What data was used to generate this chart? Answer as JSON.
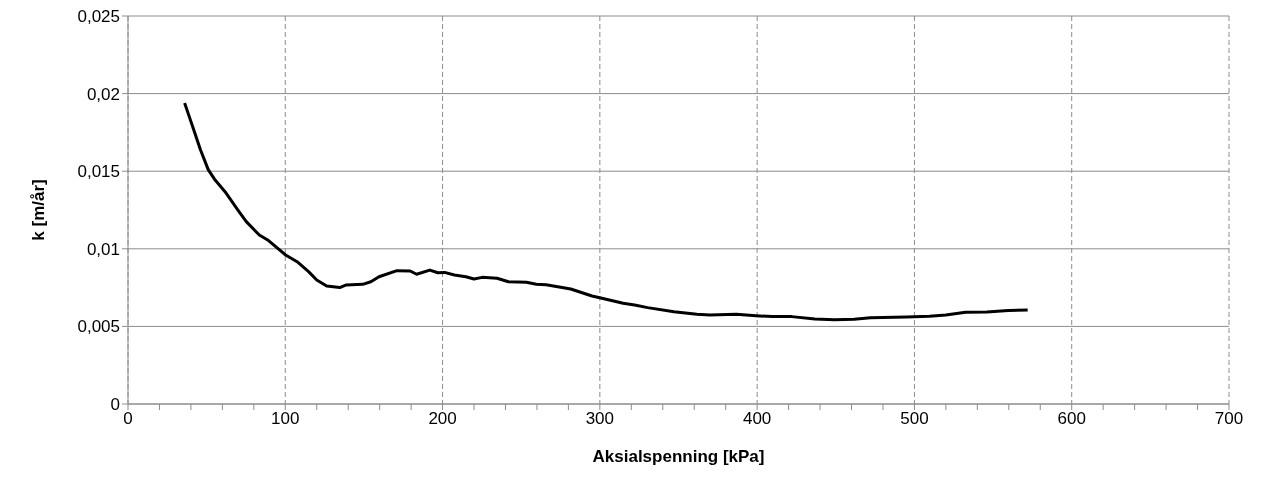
{
  "chart_data": {
    "type": "line",
    "xlabel": "Aksialspenning [kPa]",
    "ylabel": "k [m/år]",
    "x": [
      36,
      39,
      42,
      46,
      51,
      55.4,
      61.7,
      70,
      75.2,
      83.5,
      88.8,
      100.2,
      107.5,
      114.8,
      120,
      126.3,
      134.6,
      138.8,
      149.2,
      154.4,
      159.6,
      171,
      179.4,
      183.5,
      191.9,
      197,
      201.3,
      207.5,
      214.8,
      220,
      225.2,
      234.6,
      241.9,
      253.3,
      259.6,
      265.8,
      281.5,
      295,
      301.3,
      314.8,
      322.1,
      330.4,
      347.1,
      361.7,
      370,
      386.7,
      399.2,
      409.6,
      422,
      436.7,
      449.2,
      461.7,
      472,
      495,
      509.6,
      520,
      532.5,
      546,
      559.7,
      572
    ],
    "series": [
      {
        "color": "#000000",
        "values": [
          0.0194,
          0.0185,
          0.0176,
          0.0164,
          0.0151,
          0.01443,
          0.01368,
          0.01248,
          0.01175,
          0.01089,
          0.01057,
          0.0096,
          0.00917,
          0.00853,
          0.00799,
          0.0076,
          0.0075,
          0.00767,
          0.00771,
          0.00788,
          0.0082,
          0.00859,
          0.00857,
          0.00836,
          0.00863,
          0.00846,
          0.00848,
          0.00831,
          0.0082,
          0.00805,
          0.00816,
          0.0081,
          0.00788,
          0.00784,
          0.00771,
          0.00769,
          0.00741,
          0.00696,
          0.00681,
          0.00649,
          0.00638,
          0.00621,
          0.00595,
          0.00578,
          0.00574,
          0.00578,
          0.00569,
          0.00563,
          0.00563,
          0.00548,
          0.00543,
          0.00546,
          0.00556,
          0.00561,
          0.00565,
          0.00574,
          0.00591,
          0.00593,
          0.00603,
          0.00605
        ]
      }
    ],
    "xlim": [
      0,
      700
    ],
    "xticks": [
      0,
      {
        "value": 20,
        "label": null
      },
      {
        "value": 40,
        "label": null
      },
      {
        "value": 60,
        "label": null
      },
      {
        "value": 80,
        "label": null
      },
      100,
      {
        "value": 120,
        "label": null
      },
      {
        "value": 140,
        "label": null
      },
      {
        "value": 160,
        "label": null
      },
      {
        "value": 180,
        "label": null
      },
      200,
      {
        "value": 220,
        "label": null
      },
      {
        "value": 240,
        "label": null
      },
      {
        "value": 260,
        "label": null
      },
      {
        "value": 280,
        "label": null
      },
      300,
      {
        "value": 320,
        "label": null
      },
      {
        "value": 340,
        "label": null
      },
      {
        "value": 360,
        "label": null
      },
      {
        "value": 380,
        "label": null
      },
      400,
      {
        "value": 420,
        "label": null
      },
      {
        "value": 440,
        "label": null
      },
      {
        "value": 460,
        "label": null
      },
      {
        "value": 480,
        "label": null
      },
      500,
      {
        "value": 520,
        "label": null
      },
      {
        "value": 540,
        "label": null
      },
      {
        "value": 560,
        "label": null
      },
      {
        "value": 580,
        "label": null
      },
      600,
      {
        "value": 620,
        "label": null
      },
      {
        "value": 640,
        "label": null
      },
      {
        "value": 660,
        "label": null
      },
      {
        "value": 680,
        "label": null
      },
      700
    ],
    "ylim": [
      0,
      0.025
    ],
    "yticks": [
      0,
      {
        "value": 0.005,
        "label": "0,005"
      },
      {
        "value": 0.01,
        "label": "0,01"
      },
      {
        "value": 0.015,
        "label": "0,015"
      },
      {
        "value": 0.02,
        "label": "0,02"
      },
      {
        "value": 0.025,
        "label": "0,025"
      }
    ],
    "grid": true,
    "legend": false,
    "marker": "none",
    "line_style": "solid"
  }
}
